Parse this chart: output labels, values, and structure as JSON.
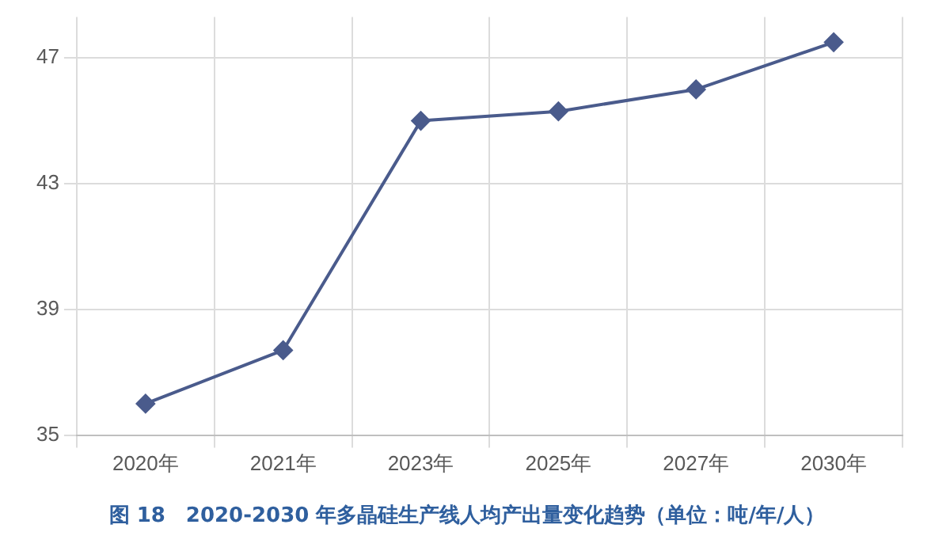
{
  "chart_data": {
    "type": "line",
    "title": "图 18　2020-2030 年多晶硅生产线人均产出量变化趋势（单位：吨/年/人）",
    "categories": [
      "2020年",
      "2021年",
      "2023年",
      "2025年",
      "2027年",
      "2030年"
    ],
    "series": [
      {
        "color": "#4a5b8c",
        "values": [
          36.0,
          37.7,
          45.0,
          45.3,
          46.0,
          47.5
        ]
      }
    ],
    "ylim": [
      35,
      48.3
    ],
    "yticks": [
      35,
      39,
      43,
      47
    ],
    "grid": true,
    "legend": false,
    "marker": "diamond",
    "line_style": "solid"
  }
}
